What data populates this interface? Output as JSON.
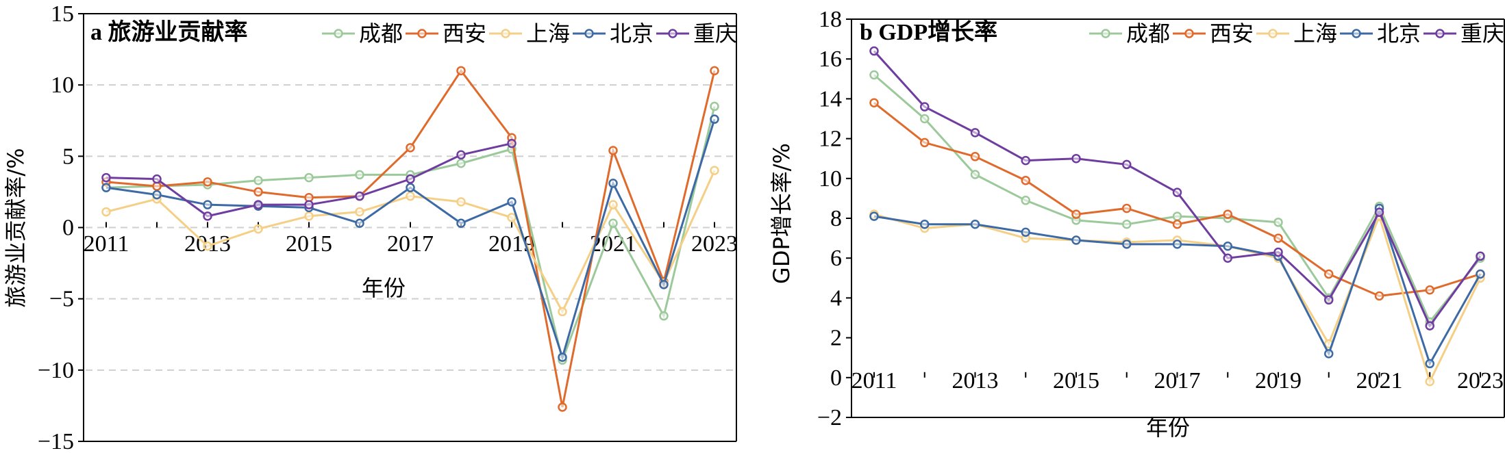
{
  "colors": {
    "成都": "#9cc99a",
    "西安": "#df6a2b",
    "上海": "#f4cf85",
    "北京": "#3d6aa4",
    "重庆": "#6f3c9f"
  },
  "chart_data": [
    {
      "type": "line",
      "title": "a 旅游业贡献率",
      "xlabel": "年份",
      "ylabel": "旅游业贡献率/%",
      "x": [
        2011,
        2012,
        2013,
        2014,
        2015,
        2016,
        2017,
        2018,
        2019,
        2020,
        2021,
        2022,
        2023
      ],
      "xticks": [
        "2011",
        "2013",
        "2015",
        "2017",
        "2019",
        "2021",
        "2023"
      ],
      "yticks": [
        "15",
        "10",
        "5",
        "0",
        "−5",
        "−10",
        "−15"
      ],
      "ylim": [
        -15,
        15
      ],
      "grid": "horizontal dashed",
      "legend": "top",
      "series": [
        {
          "name": "成都",
          "values": [
            2.8,
            2.9,
            3.0,
            3.3,
            3.5,
            3.7,
            3.7,
            4.5,
            5.5,
            -9.3,
            0.3,
            -6.2,
            8.5
          ]
        },
        {
          "name": "西安",
          "values": [
            3.2,
            2.9,
            3.2,
            2.5,
            2.1,
            2.2,
            5.6,
            11.0,
            6.3,
            -12.6,
            5.4,
            -3.8,
            11.0
          ]
        },
        {
          "name": "上海",
          "values": [
            1.1,
            2.0,
            -1.3,
            -0.1,
            0.8,
            1.1,
            2.2,
            1.8,
            0.7,
            -5.9,
            1.6,
            -3.9,
            4.0
          ]
        },
        {
          "name": "北京",
          "values": [
            2.8,
            2.3,
            1.6,
            1.5,
            1.4,
            0.3,
            2.8,
            0.3,
            1.8,
            -9.1,
            3.1,
            -4.0,
            7.6
          ]
        },
        {
          "name": "重庆",
          "values": [
            3.5,
            3.4,
            0.8,
            1.6,
            1.6,
            2.2,
            3.4,
            5.1,
            5.9,
            null,
            null,
            null,
            null
          ]
        }
      ]
    },
    {
      "type": "line",
      "title": "b GDP增长率",
      "xlabel": "年份",
      "ylabel": "GDP增长率/%",
      "x": [
        2011,
        2012,
        2013,
        2014,
        2015,
        2016,
        2017,
        2018,
        2019,
        2020,
        2021,
        2022,
        2023
      ],
      "xticks": [
        "2011",
        "2013",
        "2015",
        "2017",
        "2019",
        "2021",
        "2023"
      ],
      "yticks": [
        "18",
        "16",
        "14",
        "12",
        "10",
        "8",
        "6",
        "4",
        "2",
        "0",
        "−2"
      ],
      "ylim": [
        -2,
        18
      ],
      "grid": "none",
      "legend": "top",
      "series": [
        {
          "name": "成都",
          "values": [
            15.2,
            13.0,
            10.2,
            8.9,
            7.9,
            7.7,
            8.1,
            8.0,
            7.8,
            4.0,
            8.6,
            2.8,
            6.0
          ]
        },
        {
          "name": "西安",
          "values": [
            13.8,
            11.8,
            11.1,
            9.9,
            8.2,
            8.5,
            7.7,
            8.2,
            7.0,
            5.2,
            4.1,
            4.4,
            5.2
          ]
        },
        {
          "name": "上海",
          "values": [
            8.2,
            7.5,
            7.7,
            7.0,
            6.9,
            6.8,
            6.9,
            6.6,
            6.0,
            1.7,
            8.1,
            -0.2,
            5.0
          ]
        },
        {
          "name": "北京",
          "values": [
            8.1,
            7.7,
            7.7,
            7.3,
            6.9,
            6.7,
            6.7,
            6.6,
            6.1,
            1.2,
            8.5,
            0.7,
            5.2
          ]
        },
        {
          "name": "重庆",
          "values": [
            16.4,
            13.6,
            12.3,
            10.9,
            11.0,
            10.7,
            9.3,
            6.0,
            6.3,
            3.9,
            8.3,
            2.6,
            6.1
          ]
        }
      ]
    }
  ]
}
